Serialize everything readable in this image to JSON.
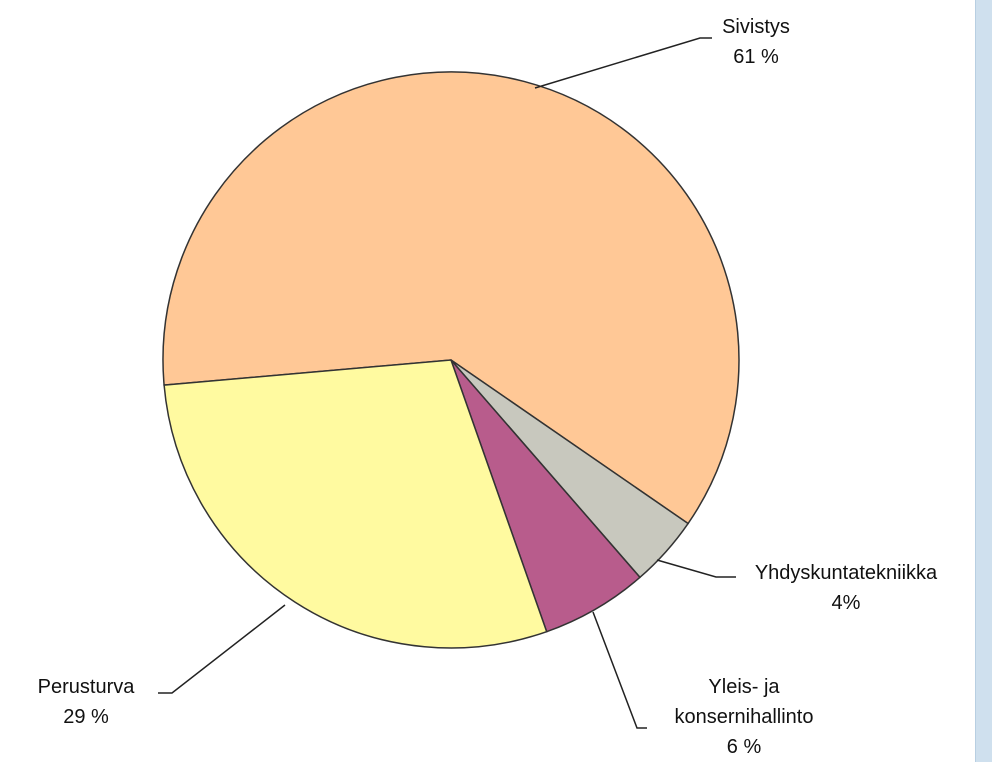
{
  "chart_data": {
    "type": "pie",
    "categories": [
      "Sivistys",
      "Yhdyskuntatekniikka",
      "Yleis- ja konsernihallinto",
      "Perusturva"
    ],
    "values": [
      61,
      4,
      6,
      29
    ],
    "value_labels": [
      "61 %",
      "4%",
      "6 %",
      "29 %"
    ],
    "colors": [
      "#ffc896",
      "#c8c8be",
      "#b85c8c",
      "#fffaa0"
    ]
  }
}
